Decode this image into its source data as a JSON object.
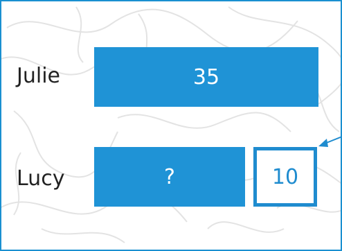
{
  "rows": [
    {
      "name": "Julie",
      "bar_label": "35"
    },
    {
      "name": "Lucy",
      "bar_label": "?",
      "extra_box_label": "10"
    }
  ],
  "colors": {
    "bar": "#1f93d6",
    "outline": "#1f8ccf",
    "frame": "#1a90d0",
    "text": "#222222",
    "pattern": "#e3e3e3"
  }
}
